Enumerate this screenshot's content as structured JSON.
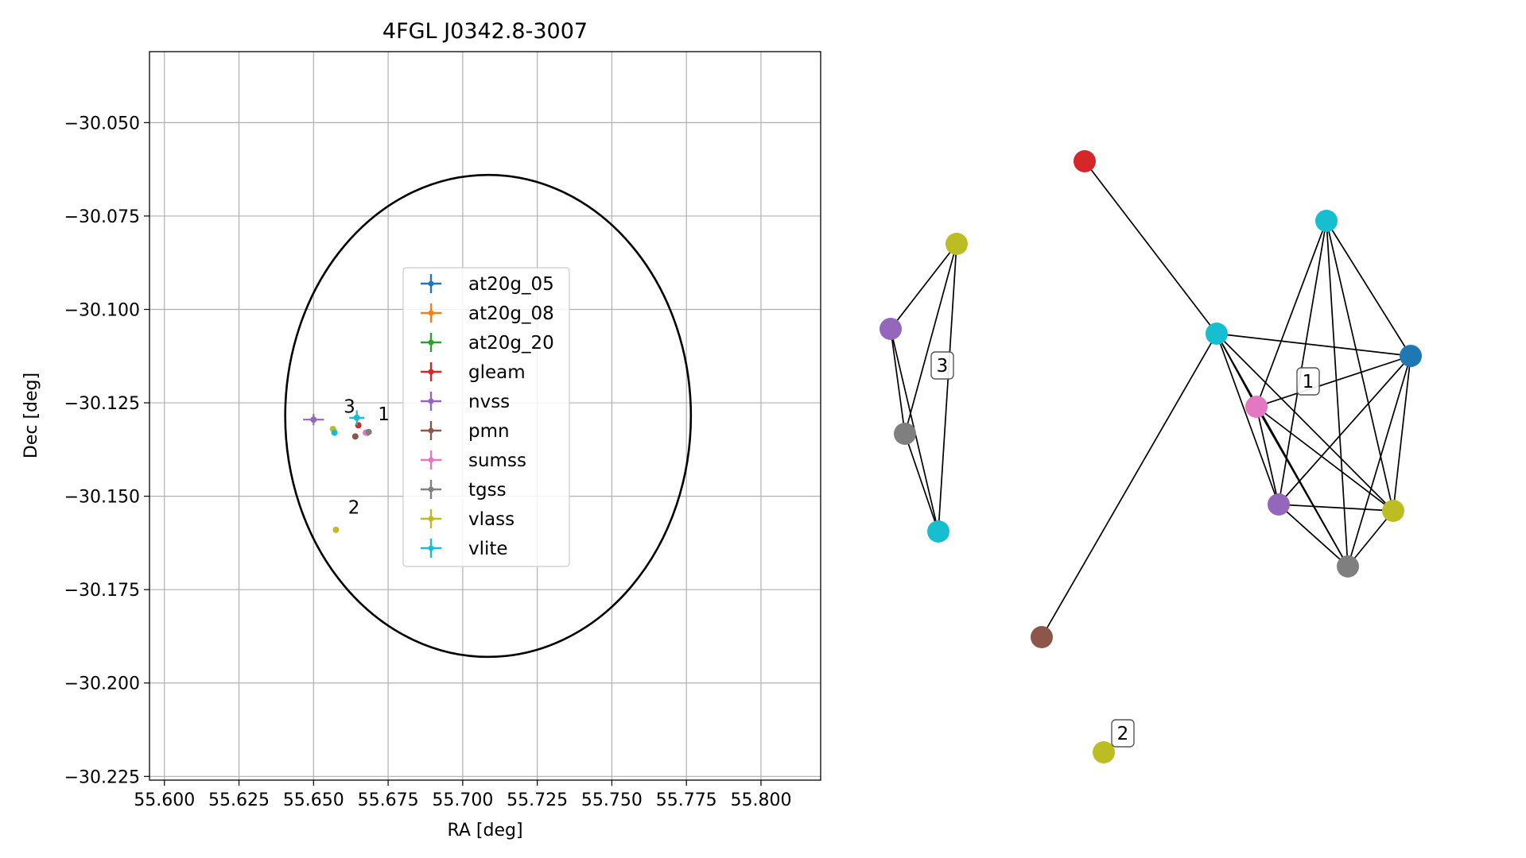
{
  "chart_data": [
    {
      "type": "scatter",
      "title": "4FGL J0342.8-3007",
      "xlabel": "RA [deg]",
      "ylabel": "Dec [deg]",
      "xlim": [
        55.595,
        55.82
      ],
      "ylim": [
        -30.226,
        -30.031
      ],
      "grid": true,
      "legend_position": "center",
      "xticks": [
        55.6,
        55.625,
        55.65,
        55.675,
        55.7,
        55.725,
        55.75,
        55.775,
        55.8
      ],
      "xtick_labels": [
        "55.600",
        "55.625",
        "55.650",
        "55.675",
        "55.700",
        "55.725",
        "55.750",
        "55.775",
        "55.800"
      ],
      "yticks": [
        -30.05,
        -30.075,
        -30.1,
        -30.125,
        -30.15,
        -30.175,
        -30.2,
        -30.225
      ],
      "ytick_labels": [
        "−30.050",
        "−30.075",
        "−30.100",
        "−30.125",
        "−30.150",
        "−30.175",
        "−30.200",
        "−30.225"
      ],
      "ellipse": {
        "center": [
          55.7085,
          -30.1285
        ],
        "semi_axis_ra": 0.068,
        "semi_axis_dec": 0.0645,
        "color": "#000000"
      },
      "series": [
        {
          "name": "at20g_05",
          "color": "#1f77b4",
          "points": [
            {
              "x": 55.668,
              "y": -30.133,
              "xerr": 0.0,
              "yerr": 0.0
            }
          ]
        },
        {
          "name": "at20g_08",
          "color": "#ff7f0e",
          "points": []
        },
        {
          "name": "at20g_20",
          "color": "#2ca02c",
          "points": []
        },
        {
          "name": "gleam",
          "color": "#d62728",
          "points": [
            {
              "x": 55.665,
              "y": -30.131,
              "xerr": 0.0,
              "yerr": 0.0
            }
          ]
        },
        {
          "name": "nvss",
          "color": "#9467bd",
          "points": [
            {
              "x": 55.65,
              "y": -30.1295,
              "xerr": 0.0035,
              "yerr": 0.0015
            }
          ]
        },
        {
          "name": "pmn",
          "color": "#8c564b",
          "points": [
            {
              "x": 55.664,
              "y": -30.134,
              "xerr": 0.0,
              "yerr": 0.0
            }
          ]
        },
        {
          "name": "sumss",
          "color": "#e377c2",
          "points": [
            {
              "x": 55.6675,
              "y": -30.133,
              "xerr": 0.0,
              "yerr": 0.0
            }
          ]
        },
        {
          "name": "tgss",
          "color": "#7f7f7f",
          "points": [
            {
              "x": 55.6685,
              "y": -30.1328,
              "xerr": 0.0,
              "yerr": 0.0
            }
          ]
        },
        {
          "name": "vlass",
          "color": "#bcbd22",
          "points": [
            {
              "x": 55.6565,
              "y": -30.132,
              "xerr": 0.0,
              "yerr": 0.0
            },
            {
              "x": 55.6575,
              "y": -30.159,
              "xerr": 0.0,
              "yerr": 0.0
            }
          ]
        },
        {
          "name": "vlite",
          "color": "#17becf",
          "points": [
            {
              "x": 55.657,
              "y": -30.133,
              "xerr": 0.0,
              "yerr": 0.0
            },
            {
              "x": 55.6645,
              "y": -30.129,
              "xerr": 0.0025,
              "yerr": 0.002
            }
          ]
        }
      ],
      "annotations": [
        {
          "text": "3",
          "x": 55.659,
          "y": -30.1285
        },
        {
          "text": "1",
          "x": 55.6705,
          "y": -30.1305
        },
        {
          "text": "2",
          "x": 55.6605,
          "y": -30.1555
        }
      ]
    },
    {
      "type": "network",
      "nodes": [
        {
          "id": "g_red",
          "color": "#d62728"
        },
        {
          "id": "g_vlite_top",
          "color": "#17becf"
        },
        {
          "id": "g_brown",
          "color": "#8c564b"
        },
        {
          "id": "c3_vlass",
          "color": "#bcbd22"
        },
        {
          "id": "c3_nvss",
          "color": "#9467bd"
        },
        {
          "id": "c3_tgss",
          "color": "#7f7f7f"
        },
        {
          "id": "c3_vlite",
          "color": "#17becf"
        },
        {
          "id": "c1_vlite",
          "color": "#17becf"
        },
        {
          "id": "c1_blue",
          "color": "#1f77b4"
        },
        {
          "id": "c1_pink",
          "color": "#e377c2"
        },
        {
          "id": "c1_nvss",
          "color": "#9467bd"
        },
        {
          "id": "c1_vlass",
          "color": "#bcbd22"
        },
        {
          "id": "c1_tgss",
          "color": "#7f7f7f"
        },
        {
          "id": "c2_vlass",
          "color": "#bcbd22"
        }
      ],
      "edges": [
        [
          "c3_vlass",
          "c3_nvss"
        ],
        [
          "c3_vlass",
          "c3_tgss"
        ],
        [
          "c3_vlass",
          "c3_vlite"
        ],
        [
          "c3_nvss",
          "c3_tgss"
        ],
        [
          "c3_nvss",
          "c3_vlite"
        ],
        [
          "c3_tgss",
          "c3_vlite"
        ],
        [
          "g_red",
          "g_vlite_top"
        ],
        [
          "g_vlite_top",
          "g_brown"
        ],
        [
          "g_vlite_top",
          "c1_blue"
        ],
        [
          "g_vlite_top",
          "c1_pink"
        ],
        [
          "g_vlite_top",
          "c1_nvss"
        ],
        [
          "g_vlite_top",
          "c1_vlass"
        ],
        [
          "g_vlite_top",
          "c1_tgss"
        ],
        [
          "c1_vlite",
          "c1_blue"
        ],
        [
          "c1_vlite",
          "c1_pink"
        ],
        [
          "c1_vlite",
          "c1_nvss"
        ],
        [
          "c1_vlite",
          "c1_vlass"
        ],
        [
          "c1_vlite",
          "c1_tgss"
        ],
        [
          "c1_blue",
          "c1_pink"
        ],
        [
          "c1_blue",
          "c1_nvss"
        ],
        [
          "c1_blue",
          "c1_vlass"
        ],
        [
          "c1_blue",
          "c1_tgss"
        ],
        [
          "c1_pink",
          "c1_nvss"
        ],
        [
          "c1_pink",
          "c1_vlass"
        ],
        [
          "c1_pink",
          "c1_tgss"
        ],
        [
          "c1_nvss",
          "c1_vlass"
        ],
        [
          "c1_nvss",
          "c1_tgss"
        ],
        [
          "c1_vlass",
          "c1_tgss"
        ]
      ],
      "cluster_labels": [
        {
          "text": "3",
          "near": "c3_nvss"
        },
        {
          "text": "1",
          "near": "c1_pink"
        },
        {
          "text": "2",
          "near": "c2_vlass"
        }
      ]
    }
  ]
}
